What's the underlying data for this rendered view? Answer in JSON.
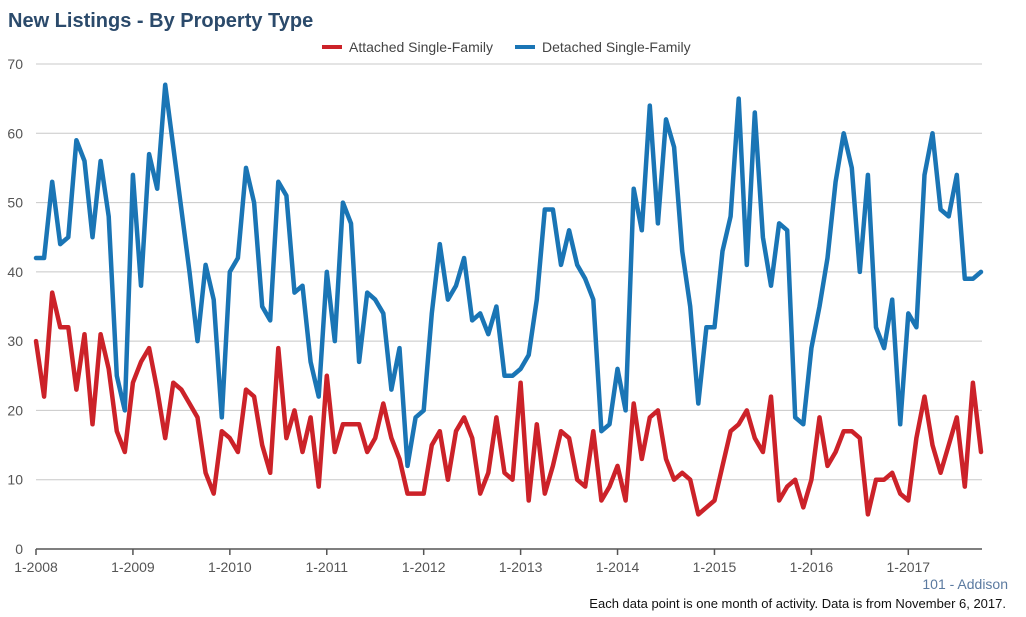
{
  "chart_data": {
    "type": "line",
    "title": "New Listings - By Property Type",
    "x_start": "2008-01",
    "x_tick_labels": [
      "1-2008",
      "1-2009",
      "1-2010",
      "1-2011",
      "1-2012",
      "1-2013",
      "1-2014",
      "1-2015",
      "1-2016",
      "1-2017"
    ],
    "ylim": [
      0,
      70
    ],
    "y_ticks": [
      0,
      10,
      20,
      30,
      40,
      50,
      60,
      70
    ],
    "grid": true,
    "legend_position": "top",
    "series": [
      {
        "name": "Attached Single-Family",
        "color": "#cc2229",
        "values": [
          30,
          22,
          37,
          32,
          32,
          23,
          31,
          18,
          31,
          26,
          17,
          14,
          24,
          27,
          29,
          23,
          16,
          24,
          23,
          21,
          19,
          11,
          8,
          17,
          16,
          14,
          23,
          22,
          15,
          11,
          29,
          16,
          20,
          14,
          19,
          9,
          25,
          14,
          18,
          18,
          18,
          14,
          16,
          21,
          16,
          13,
          8,
          8,
          8,
          15,
          17,
          10,
          17,
          19,
          16,
          8,
          11,
          19,
          11,
          10,
          24,
          7,
          18,
          8,
          12,
          17,
          16,
          10,
          9,
          17,
          7,
          9,
          12,
          7,
          21,
          13,
          19,
          20,
          13,
          10,
          11,
          10,
          5,
          6,
          7,
          12,
          17,
          18,
          20,
          16,
          14,
          22,
          7,
          9,
          10,
          6,
          10,
          19,
          12,
          14,
          17,
          17,
          16,
          5,
          10,
          10,
          11,
          8,
          7,
          16,
          22,
          15,
          11,
          15,
          19,
          9,
          24,
          14
        ]
      },
      {
        "name": "Detached Single-Family",
        "color": "#1a75b5",
        "values": [
          42,
          42,
          53,
          44,
          45,
          59,
          56,
          45,
          56,
          48,
          25,
          20,
          54,
          38,
          57,
          52,
          67,
          58,
          49,
          40,
          30,
          41,
          36,
          19,
          40,
          42,
          55,
          50,
          35,
          33,
          53,
          51,
          37,
          38,
          27,
          22,
          40,
          30,
          50,
          47,
          27,
          37,
          36,
          34,
          23,
          29,
          12,
          19,
          20,
          34,
          44,
          36,
          38,
          42,
          33,
          34,
          31,
          35,
          25,
          25,
          26,
          28,
          36,
          49,
          49,
          41,
          46,
          41,
          39,
          36,
          17,
          18,
          26,
          20,
          52,
          46,
          64,
          47,
          62,
          58,
          43,
          35,
          21,
          32,
          32,
          43,
          48,
          65,
          41,
          63,
          45,
          38,
          47,
          46,
          19,
          18,
          29,
          35,
          42,
          53,
          60,
          55,
          40,
          54,
          32,
          29,
          36,
          18,
          34,
          32,
          54,
          60,
          49,
          48,
          54,
          39,
          39,
          40
        ]
      }
    ]
  },
  "footer": {
    "region": "101 - Addison",
    "note": "Each data point is one month of activity. Data is from November 6, 2017."
  }
}
